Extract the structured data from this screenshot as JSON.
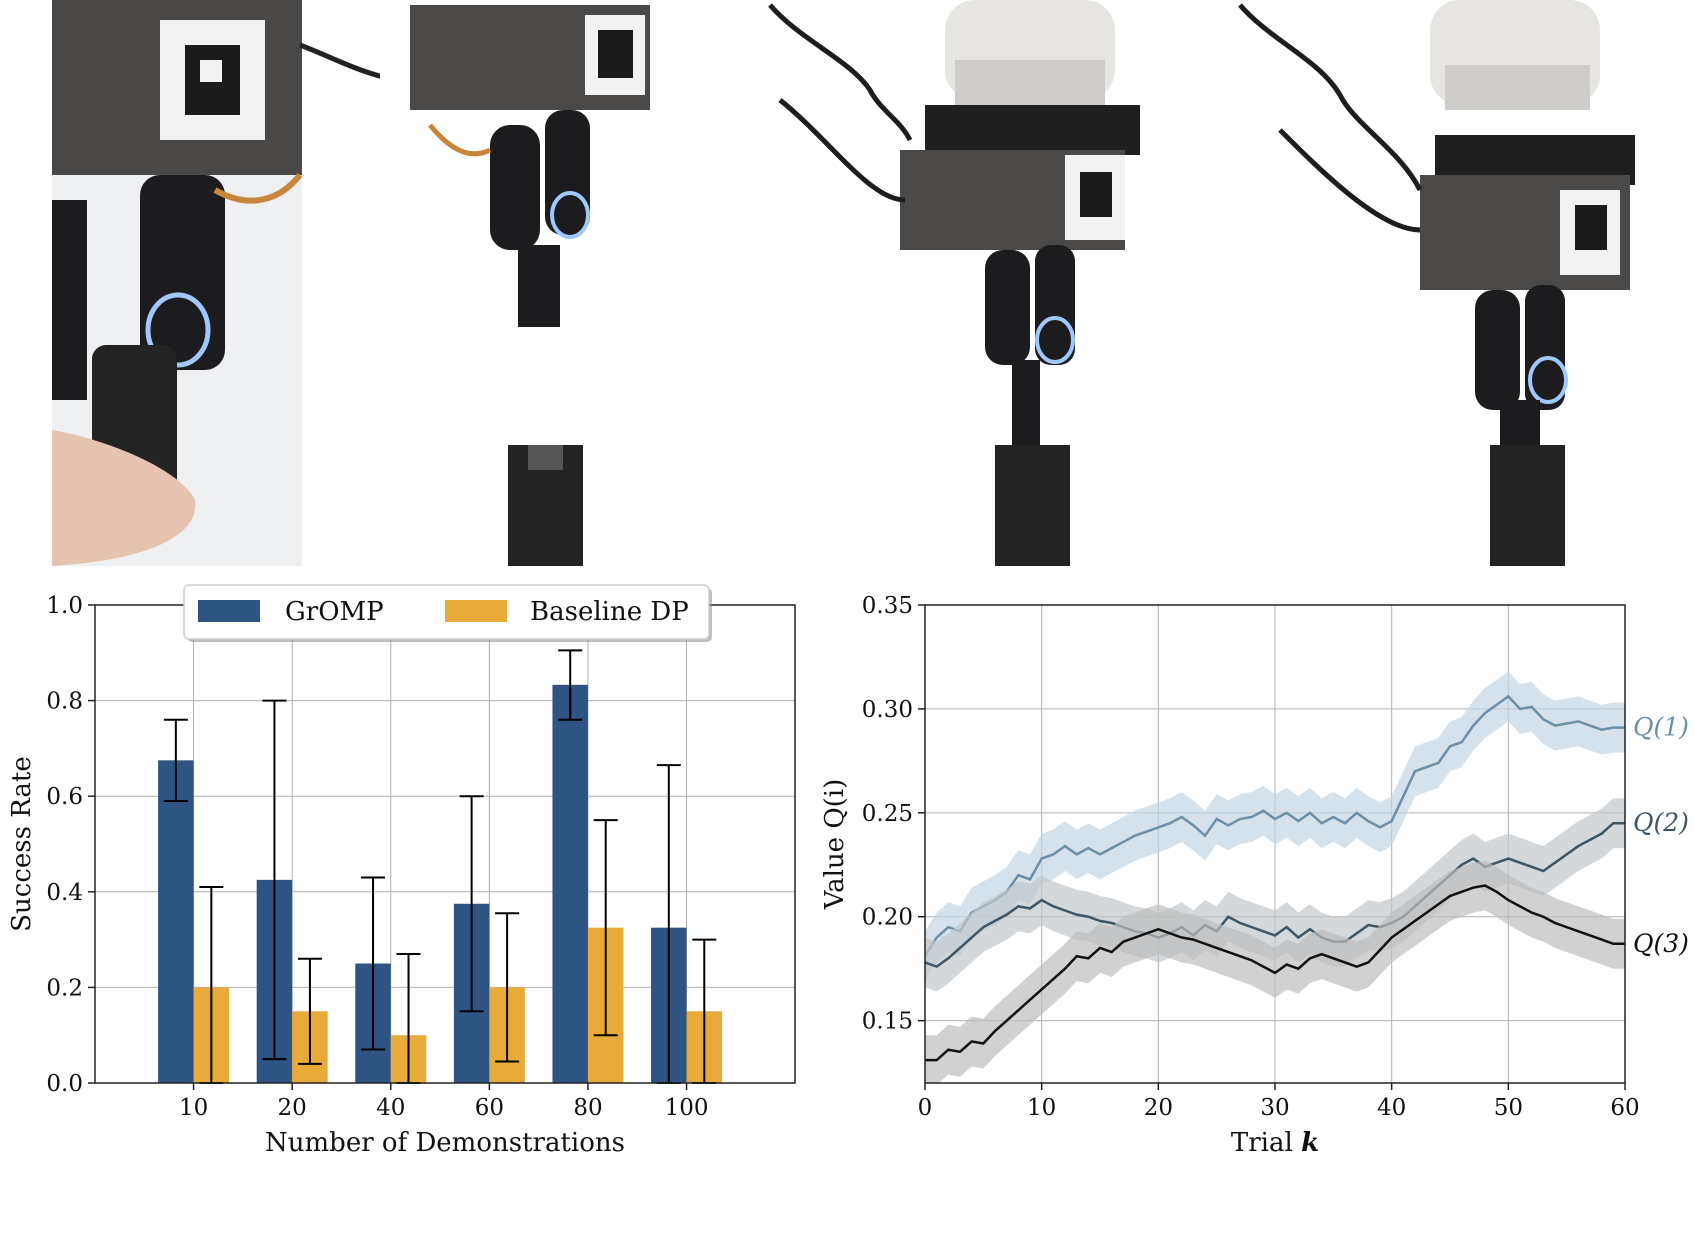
{
  "photos": {
    "panels": [
      {
        "name": "hand-guided-demonstration"
      },
      {
        "name": "gripper-above-socket"
      },
      {
        "name": "robot-inserting-peg"
      },
      {
        "name": "robot-peg-inserted"
      }
    ]
  },
  "chart_data": [
    {
      "type": "bar",
      "title": "",
      "xlabel": "Number of Demonstrations",
      "ylabel": "Success Rate",
      "categories": [
        "10",
        "20",
        "40",
        "60",
        "80",
        "100"
      ],
      "ylim": [
        0,
        1.0
      ],
      "yticks": [
        0.0,
        0.2,
        0.4,
        0.6,
        0.8,
        1.0
      ],
      "ytick_labels": [
        "0.0",
        "0.2",
        "0.4",
        "0.6",
        "0.8",
        "1.0"
      ],
      "grid": true,
      "legend": {
        "placement": "top-center",
        "entries": [
          "GrOMP",
          "Baseline DP"
        ]
      },
      "series": [
        {
          "name": "GrOMP",
          "color": "#2e5483",
          "values": [
            0.675,
            0.425,
            0.25,
            0.375,
            0.833,
            0.325
          ],
          "err_low": [
            0.59,
            0.05,
            0.07,
            0.15,
            0.76,
            0.0
          ],
          "err_high": [
            0.76,
            0.8,
            0.43,
            0.6,
            0.905,
            0.665
          ]
        },
        {
          "name": "Baseline DP",
          "color": "#e8ab39",
          "values": [
            0.2,
            0.15,
            0.1,
            0.2,
            0.325,
            0.15
          ],
          "err_low": [
            0.0,
            0.04,
            0.0,
            0.045,
            0.1,
            0.0
          ],
          "err_high": [
            0.41,
            0.26,
            0.27,
            0.355,
            0.55,
            0.3
          ]
        }
      ]
    },
    {
      "type": "line",
      "title": "",
      "xlabel": "Trial",
      "xlabel_symbol": "k",
      "ylabel": "Value Q(i)",
      "xlim": [
        0,
        60
      ],
      "ylim": [
        0.12,
        0.35
      ],
      "xticks": [
        0,
        10,
        20,
        30,
        40,
        50,
        60
      ],
      "xtick_labels": [
        "0",
        "10",
        "20",
        "30",
        "40",
        "50",
        "60"
      ],
      "yticks": [
        0.15,
        0.2,
        0.25,
        0.3,
        0.35
      ],
      "ytick_labels": [
        "0.15",
        "0.20",
        "0.25",
        "0.30",
        "0.35"
      ],
      "grid": true,
      "series": [
        {
          "name": "Q(1)",
          "color": "#6a8fa8",
          "band_color": "#c5d6e2",
          "x": [
            0,
            1,
            2,
            3,
            4,
            5,
            6,
            7,
            8,
            9,
            10,
            11,
            12,
            13,
            14,
            15,
            16,
            17,
            18,
            19,
            20,
            21,
            22,
            23,
            24,
            25,
            26,
            27,
            28,
            29,
            30,
            31,
            32,
            33,
            34,
            35,
            36,
            37,
            38,
            39,
            40,
            41,
            42,
            43,
            44,
            45,
            46,
            47,
            48,
            49,
            50,
            51,
            52,
            53,
            54,
            55,
            56,
            57,
            58,
            59,
            60
          ],
          "y": [
            0.181,
            0.19,
            0.195,
            0.193,
            0.202,
            0.205,
            0.208,
            0.212,
            0.22,
            0.218,
            0.228,
            0.23,
            0.234,
            0.23,
            0.233,
            0.23,
            0.233,
            0.236,
            0.239,
            0.241,
            0.243,
            0.245,
            0.248,
            0.244,
            0.239,
            0.247,
            0.244,
            0.247,
            0.248,
            0.251,
            0.247,
            0.25,
            0.246,
            0.25,
            0.245,
            0.248,
            0.245,
            0.25,
            0.246,
            0.243,
            0.246,
            0.258,
            0.27,
            0.272,
            0.274,
            0.282,
            0.284,
            0.292,
            0.298,
            0.302,
            0.306,
            0.3,
            0.301,
            0.295,
            0.292,
            0.293,
            0.294,
            0.292,
            0.29,
            0.291,
            0.291
          ],
          "band": 0.012
        },
        {
          "name": "Q(2)",
          "color": "#3e5566",
          "band_color": "#c2c7cb",
          "x": [
            0,
            1,
            2,
            3,
            4,
            5,
            6,
            7,
            8,
            9,
            10,
            11,
            12,
            13,
            14,
            15,
            16,
            17,
            18,
            19,
            20,
            21,
            22,
            23,
            24,
            25,
            26,
            27,
            28,
            29,
            30,
            31,
            32,
            33,
            34,
            35,
            36,
            37,
            38,
            39,
            40,
            41,
            42,
            43,
            44,
            45,
            46,
            47,
            48,
            49,
            50,
            51,
            52,
            53,
            54,
            55,
            56,
            57,
            58,
            59,
            60
          ],
          "y": [
            0.178,
            0.176,
            0.18,
            0.185,
            0.19,
            0.195,
            0.198,
            0.201,
            0.205,
            0.204,
            0.208,
            0.205,
            0.203,
            0.201,
            0.2,
            0.198,
            0.197,
            0.195,
            0.193,
            0.192,
            0.19,
            0.192,
            0.195,
            0.191,
            0.196,
            0.193,
            0.2,
            0.197,
            0.195,
            0.193,
            0.191,
            0.195,
            0.19,
            0.194,
            0.19,
            0.188,
            0.188,
            0.192,
            0.196,
            0.195,
            0.197,
            0.2,
            0.205,
            0.21,
            0.215,
            0.22,
            0.225,
            0.228,
            0.224,
            0.226,
            0.228,
            0.226,
            0.224,
            0.222,
            0.226,
            0.23,
            0.234,
            0.237,
            0.24,
            0.245,
            0.245
          ],
          "band": 0.012
        },
        {
          "name": "Q(3)",
          "color": "#111111",
          "band_color": "#bdbdbd",
          "x": [
            0,
            1,
            2,
            3,
            4,
            5,
            6,
            7,
            8,
            9,
            10,
            11,
            12,
            13,
            14,
            15,
            16,
            17,
            18,
            19,
            20,
            21,
            22,
            23,
            24,
            25,
            26,
            27,
            28,
            29,
            30,
            31,
            32,
            33,
            34,
            35,
            36,
            37,
            38,
            39,
            40,
            41,
            42,
            43,
            44,
            45,
            46,
            47,
            48,
            49,
            50,
            51,
            52,
            53,
            54,
            55,
            56,
            57,
            58,
            59,
            60
          ],
          "y": [
            0.131,
            0.131,
            0.136,
            0.135,
            0.14,
            0.139,
            0.145,
            0.15,
            0.155,
            0.16,
            0.165,
            0.17,
            0.175,
            0.181,
            0.18,
            0.185,
            0.183,
            0.188,
            0.19,
            0.192,
            0.194,
            0.192,
            0.19,
            0.189,
            0.187,
            0.185,
            0.183,
            0.181,
            0.179,
            0.176,
            0.173,
            0.177,
            0.175,
            0.18,
            0.182,
            0.18,
            0.178,
            0.176,
            0.178,
            0.184,
            0.19,
            0.194,
            0.198,
            0.202,
            0.206,
            0.21,
            0.212,
            0.214,
            0.215,
            0.212,
            0.208,
            0.205,
            0.202,
            0.2,
            0.197,
            0.195,
            0.193,
            0.191,
            0.189,
            0.187,
            0.187
          ],
          "band": 0.012
        }
      ]
    }
  ]
}
